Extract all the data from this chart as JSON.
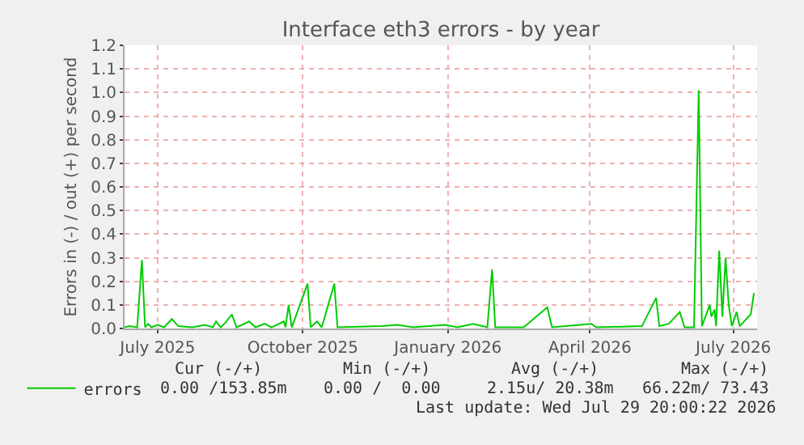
{
  "chart_data": {
    "type": "line",
    "title": "Interface eth3 errors - by year",
    "ylabel": "Errors in (-) / out (+) per second",
    "xlim": [
      "2025-06-25",
      "2026-07-31"
    ],
    "xticks": [
      {
        "value": "2025-07-16",
        "label": "July 2025"
      },
      {
        "value": "2025-10-16",
        "label": "October 2025"
      },
      {
        "value": "2026-01-16",
        "label": "January 2026"
      },
      {
        "value": "2026-04-16",
        "label": "April 2026"
      },
      {
        "value": "2026-07-16",
        "label": "July 2026"
      }
    ],
    "ylim": [
      0,
      1.2
    ],
    "yticks": [
      {
        "value": 0,
        "label": "0.0"
      },
      0.1,
      0.2,
      0.3,
      0.4,
      0.5,
      0.6,
      0.7,
      0.8,
      0.9,
      {
        "value": 1,
        "label": "1.0"
      },
      1.1,
      1.2
    ],
    "grid": true,
    "legend": "bottom left",
    "marker": "none",
    "line_style": "solid",
    "series": [
      {
        "name": "errors",
        "color": "#00cc00",
        "x": [
          "2025-06-25",
          "2025-06-28",
          "2025-07-03",
          "2025-07-06",
          "2025-07-08",
          "2025-07-10",
          "2025-07-12",
          "2025-07-16",
          "2025-07-20",
          "2025-07-25",
          "2025-07-29",
          "2025-08-07",
          "2025-08-15",
          "2025-08-20",
          "2025-08-22",
          "2025-08-25",
          "2025-08-28",
          "2025-09-01",
          "2025-09-04",
          "2025-09-12",
          "2025-09-16",
          "2025-09-22",
          "2025-09-26",
          "2025-10-04",
          "2025-10-05",
          "2025-10-07",
          "2025-10-09",
          "2025-10-19",
          "2025-10-21",
          "2025-10-25",
          "2025-10-28",
          "2025-11-05",
          "2025-11-07",
          "2025-12-05",
          "2025-12-15",
          "2025-12-25",
          "2026-01-14",
          "2026-01-22",
          "2026-02-01",
          "2026-02-10",
          "2026-02-13",
          "2026-02-15",
          "2026-03-05",
          "2026-03-20",
          "2026-03-23",
          "2026-04-17",
          "2026-04-20",
          "2026-05-19",
          "2026-05-28",
          "2026-05-30",
          "2026-06-05",
          "2026-06-12",
          "2026-06-15",
          "2026-06-21",
          "2026-06-24",
          "2026-06-26",
          "2026-07-01",
          "2026-07-02",
          "2026-07-04",
          "2026-07-05",
          "2026-07-07",
          "2026-07-09",
          "2026-07-11",
          "2026-07-13",
          "2026-07-15",
          "2026-07-18",
          "2026-07-20",
          "2026-07-27",
          "2026-07-29"
        ],
        "values": [
          0.005,
          0.01,
          0.005,
          0.29,
          0.005,
          0.02,
          0.005,
          0.015,
          0.005,
          0.04,
          0.01,
          0.005,
          0.015,
          0.005,
          0.03,
          0.005,
          0.025,
          0.06,
          0.005,
          0.03,
          0.005,
          0.02,
          0.005,
          0.03,
          0.005,
          0.1,
          0.005,
          0.19,
          0.005,
          0.03,
          0.005,
          0.19,
          0.005,
          0.01,
          0.015,
          0.005,
          0.015,
          0.005,
          0.02,
          0.005,
          0.25,
          0.005,
          0.005,
          0.09,
          0.005,
          0.02,
          0.005,
          0.01,
          0.13,
          0.01,
          0.02,
          0.07,
          0.005,
          0.005,
          1.01,
          0.01,
          0.1,
          0.05,
          0.08,
          0.01,
          0.33,
          0.05,
          0.3,
          0.1,
          0.01,
          0.07,
          0.01,
          0.06,
          0.15
        ]
      }
    ],
    "annotations": [
      "Cur (-/+)",
      "Min (-/+)",
      "Avg (-/+)",
      "Max (-/+)",
      "0.00 /153.85m",
      "0.00 /  0.00",
      "2.15u/ 20.38m",
      "66.22m/ 73.43",
      "Last update: Wed Jul 29 20:00:22 2026"
    ]
  }
}
